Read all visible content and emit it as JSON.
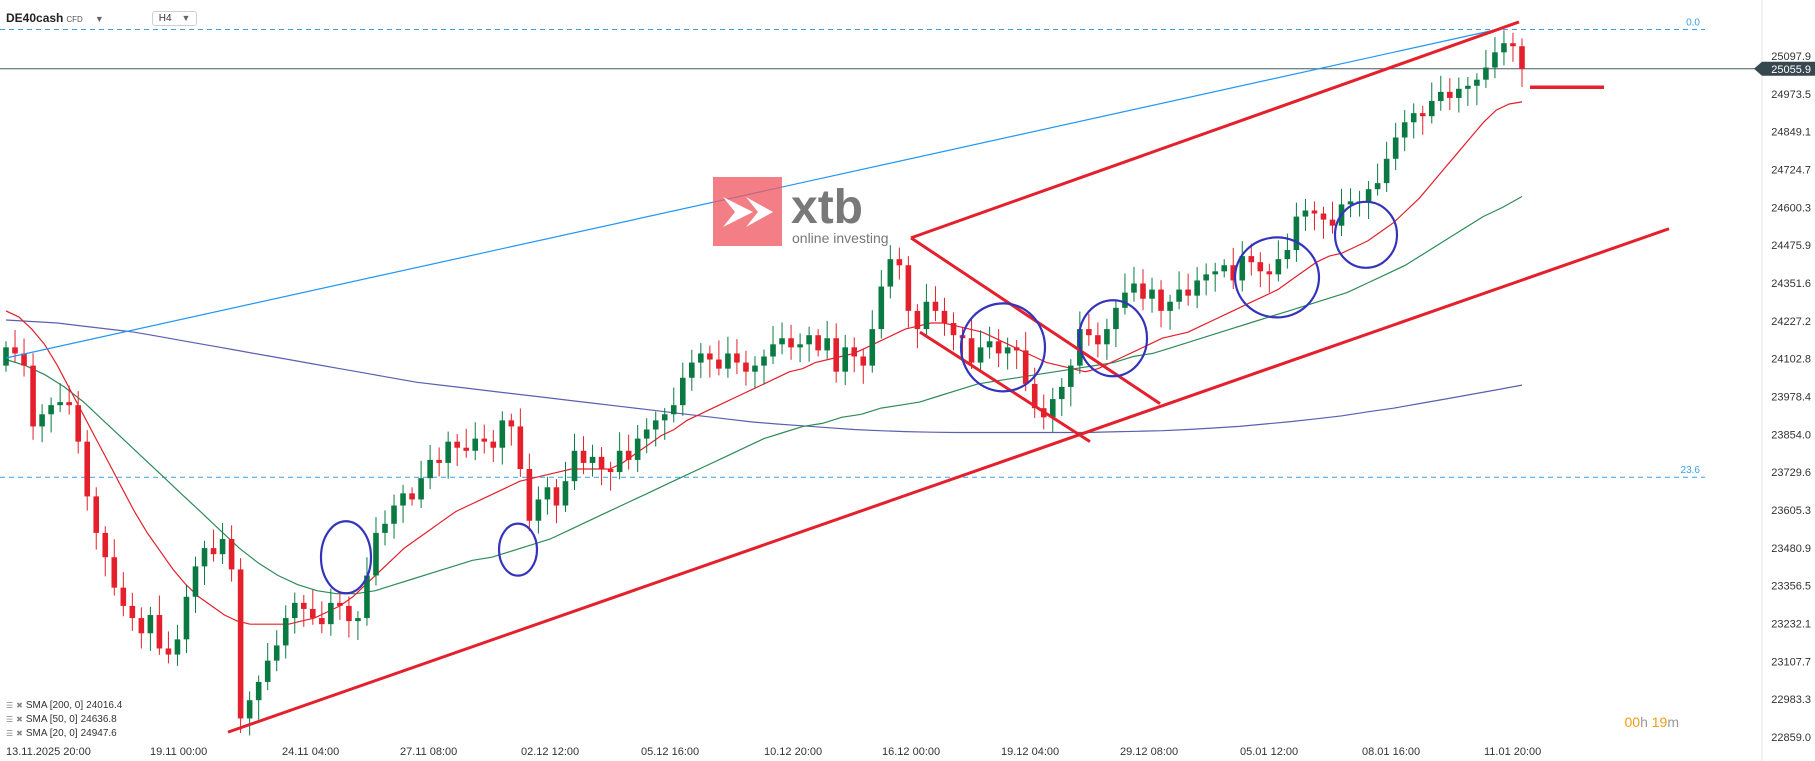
{
  "header": {
    "symbol": "DE40cash",
    "instrument_type": "CFD",
    "timeframe": "H4",
    "symbol_dropdown_icon": "chevron-down-icon",
    "timeframe_dropdown_icon": "chevron-down-icon"
  },
  "logo": {
    "name": "xtb",
    "tagline": "online investing",
    "color": "#f05a64"
  },
  "price": {
    "current": "25055.9",
    "current_color": "#37474f"
  },
  "fib_levels": [
    {
      "label": "0.0",
      "value": 25185
    },
    {
      "label": "23.6",
      "value": 23713
    }
  ],
  "colors": {
    "up": "#0a7a42",
    "down": "#e3202b",
    "sma20": "#e3202b",
    "sma50": "#2e8b57",
    "sma200": "#5b5fb0",
    "trend": "#e3202b",
    "blue_line": "#2196f3",
    "circle": "#3333bb"
  },
  "legend": [
    {
      "label": "SMA [200, 0]",
      "value": "24016.4"
    },
    {
      "label": "SMA [50, 0]",
      "value": "24636.8"
    },
    {
      "label": "SMA [20, 0]",
      "value": "24947.6"
    }
  ],
  "timer": {
    "hours": "00",
    "hours_unit": "h",
    "minutes": "19",
    "minutes_unit": "m"
  },
  "chart_data": {
    "type": "candlestick",
    "y_ticks": [
      "25097.9",
      "24973.5",
      "24849.1",
      "24724.7",
      "24600.3",
      "24475.9",
      "24351.6",
      "24227.2",
      "24102.8",
      "23978.4",
      "23854.0",
      "23729.6",
      "23605.3",
      "23480.9",
      "23356.5",
      "23232.1",
      "23107.7",
      "22983.3",
      "22859.0"
    ],
    "x_ticks": [
      "13.11.2025  20:00",
      "19.11  00:00",
      "24.11  04:00",
      "27.11  08:00",
      "02.12  12:00",
      "05.12  16:00",
      "10.12  20:00",
      "16.12  00:00",
      "19.12  04:00",
      "29.12  08:00",
      "05.01  12:00",
      "08.01  16:00",
      "11.01  20:00"
    ],
    "closes": [
      24140,
      24120,
      24080,
      23880,
      23920,
      23950,
      23960,
      23950,
      23830,
      23650,
      23530,
      23450,
      23350,
      23290,
      23250,
      23200,
      23260,
      23150,
      23130,
      23180,
      23320,
      23420,
      23480,
      23460,
      23510,
      23410,
      22920,
      22980,
      23040,
      23110,
      23160,
      23250,
      23300,
      23280,
      23250,
      23230,
      23300,
      23290,
      23240,
      23250,
      23390,
      23530,
      23560,
      23620,
      23660,
      23640,
      23710,
      23770,
      23760,
      23830,
      23810,
      23800,
      23840,
      23830,
      23810,
      23900,
      23880,
      23740,
      23570,
      23640,
      23680,
      23620,
      23700,
      23800,
      23760,
      23780,
      23740,
      23730,
      23800,
      23770,
      23840,
      23870,
      23900,
      23920,
      23950,
      24040,
      24090,
      24120,
      24100,
      24070,
      24120,
      24090,
      24060,
      24080,
      24110,
      24150,
      24170,
      24140,
      24150,
      24180,
      24130,
      24170,
      24060,
      24140,
      24110,
      24080,
      24200,
      24340,
      24430,
      24410,
      24260,
      24200,
      24290,
      24260,
      24220,
      24180,
      24170,
      24090,
      24140,
      24160,
      24120,
      24140,
      24130,
      24020,
      23940,
      23910,
      23970,
      24010,
      24080,
      24200,
      24180,
      24150,
      24200,
      24270,
      24320,
      24350,
      24300,
      24330,
      24260,
      24290,
      24330,
      24310,
      24360,
      24380,
      24390,
      24410,
      24360,
      24440,
      24420,
      24390,
      24380,
      24430,
      24460,
      24570,
      24590,
      24580,
      24560,
      24540,
      24610,
      24620,
      24620,
      24660,
      24680,
      24760,
      24830,
      24880,
      24910,
      24900,
      24950,
      24980,
      24960,
      24990,
      25000,
      25020,
      25060,
      25110,
      25140,
      25130,
      25055
    ],
    "sma20": [
      24260,
      24240,
      24200,
      24150,
      24080,
      24000,
      23920,
      23840,
      23760,
      23680,
      23600,
      23530,
      23470,
      23410,
      23360,
      23320,
      23290,
      23260,
      23240,
      23230,
      23230,
      23230,
      23230,
      23240,
      23250,
      23270,
      23290,
      23320,
      23360,
      23400,
      23440,
      23480,
      23510,
      23540,
      23570,
      23600,
      23620,
      23640,
      23660,
      23680,
      23700,
      23710,
      23720,
      23730,
      23740,
      23740,
      23740,
      23740,
      23760,
      23790,
      23820,
      23850,
      23870,
      23900,
      23920,
      23940,
      23960,
      23980,
      24000,
      24020,
      24040,
      24060,
      24070,
      24090,
      24100,
      24110,
      24120,
      24140,
      24160,
      24180,
      24200,
      24210,
      24220,
      24220,
      24210,
      24200,
      24190,
      24170,
      24150,
      24130,
      24110,
      24090,
      24080,
      24070,
      24060,
      24070,
      24090,
      24110,
      24130,
      24150,
      24170,
      24180,
      24190,
      24210,
      24230,
      24250,
      24270,
      24290,
      24310,
      24330,
      24360,
      24390,
      24420,
      24440,
      24450,
      24470,
      24490,
      24520,
      24550,
      24590,
      24630,
      24680,
      24730,
      24780,
      24830,
      24880,
      24920,
      24940,
      24947
    ],
    "sma50": [
      24100,
      24080,
      24050,
      24010,
      23960,
      23900,
      23840,
      23780,
      23720,
      23660,
      23600,
      23540,
      23480,
      23430,
      23390,
      23360,
      23340,
      23330,
      23330,
      23340,
      23360,
      23380,
      23400,
      23420,
      23440,
      23450,
      23470,
      23490,
      23510,
      23540,
      23570,
      23600,
      23630,
      23660,
      23690,
      23720,
      23750,
      23780,
      23810,
      23840,
      23860,
      23880,
      23890,
      23910,
      23920,
      23940,
      23950,
      23960,
      23980,
      24000,
      24020,
      24030,
      24040,
      24050,
      24060,
      24070,
      24080,
      24090,
      24110,
      24120,
      24140,
      24160,
      24180,
      24200,
      24220,
      24240,
      24260,
      24280,
      24300,
      24320,
      24350,
      24380,
      24410,
      24450,
      24490,
      24530,
      24570,
      24600,
      24636
    ],
    "sma200": [
      24230,
      24225,
      24220,
      24210,
      24200,
      24190,
      24175,
      24160,
      24145,
      24130,
      24115,
      24100,
      24085,
      24070,
      24055,
      24040,
      24025,
      24015,
      24005,
      23995,
      23985,
      23975,
      23965,
      23955,
      23945,
      23935,
      23925,
      23915,
      23905,
      23895,
      23888,
      23882,
      23876,
      23870,
      23866,
      23863,
      23861,
      23860,
      23860,
      23860,
      23860,
      23860,
      23860,
      23862,
      23864,
      23866,
      23870,
      23875,
      23880,
      23888,
      23896,
      23905,
      23915,
      23928,
      23940,
      23955,
      23970,
      23985,
      24000,
      24016
    ]
  }
}
